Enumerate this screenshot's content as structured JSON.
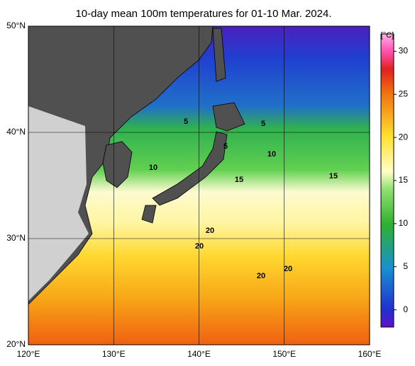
{
  "title": "10-day mean 100m temperatures for 01-10 Mar. 2024.",
  "map": {
    "lon_ticks": [
      {
        "value": 120,
        "label": "120°E"
      },
      {
        "value": 130,
        "label": "130°E"
      },
      {
        "value": 140,
        "label": "140°E"
      },
      {
        "value": 150,
        "label": "150°E"
      },
      {
        "value": 160,
        "label": "160°E"
      }
    ],
    "lat_ticks": [
      {
        "value": 20,
        "label": "20°N"
      },
      {
        "value": 30,
        "label": "30°N"
      },
      {
        "value": 40,
        "label": "40°N"
      },
      {
        "value": 50,
        "label": "50°N"
      }
    ],
    "contour_labels": [
      "5",
      "5",
      "5",
      "10",
      "10",
      "15",
      "15",
      "20",
      "20",
      "20",
      "20"
    ]
  },
  "colorbar": {
    "unit": "[°C]",
    "lim": [
      -2,
      32
    ],
    "ticks": [
      0,
      5,
      10,
      15,
      20,
      25,
      30
    ]
  }
}
